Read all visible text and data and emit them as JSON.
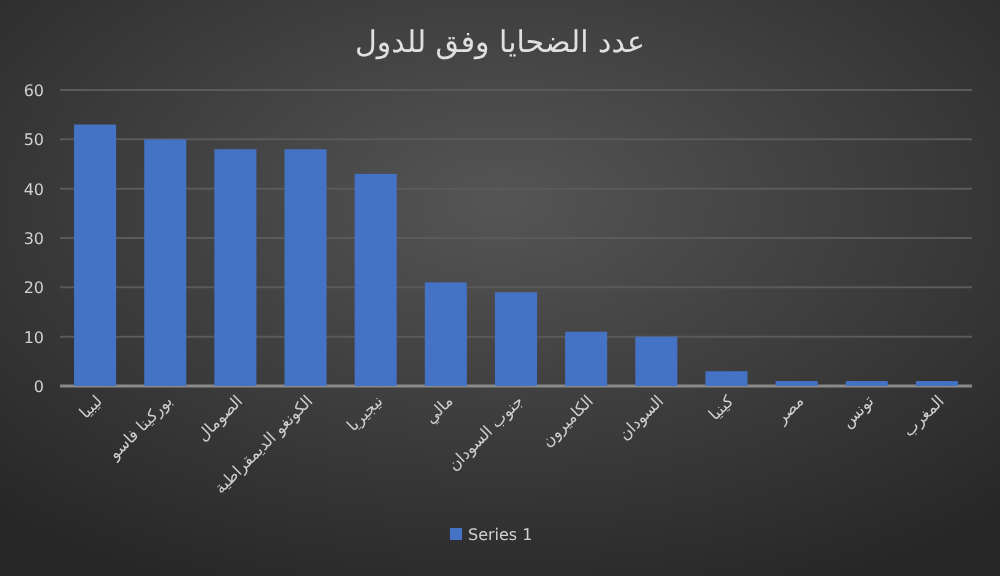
{
  "chart_data": {
    "type": "bar",
    "title": "عدد الضحايا وفق للدول",
    "categories": [
      "ليبيا",
      "بوركينا فاسو",
      "الصومال",
      "الكونغو الديمقراطية",
      "نيجيريا",
      "مالي",
      "جنوب السودان",
      "الكاميرون",
      "السودان",
      "كينيا",
      "مصر",
      "تونس",
      "المغرب"
    ],
    "series": [
      {
        "name": "Series 1",
        "color": "#4472c4",
        "values": [
          53,
          50,
          48,
          48,
          43,
          21,
          19,
          11,
          10,
          3,
          1,
          1,
          1
        ]
      }
    ],
    "ylim": [
      0,
      60
    ],
    "yticks": [
      0,
      10,
      20,
      30,
      40,
      50,
      60
    ],
    "grid": "y",
    "legend": "bottom"
  }
}
